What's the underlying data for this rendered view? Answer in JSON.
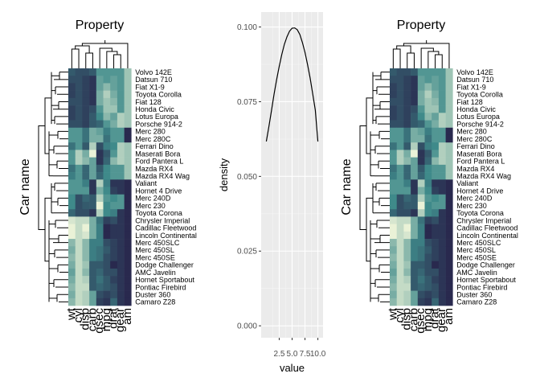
{
  "chart_data": [
    {
      "type": "heatmap",
      "title": "Property",
      "ylabel": "Car name",
      "columns": [
        "wt",
        "cyl",
        "disp",
        "carb",
        "qsec",
        "mpg",
        "drat",
        "gear",
        "am"
      ],
      "rows": [
        "Volvo 142E",
        "Datsun 710",
        "Fiat X1-9",
        "Toyota Corolla",
        "Fiat 128",
        "Honda Civic",
        "Lotus Europa",
        "Porsche 914-2",
        "Merc 280",
        "Merc 280C",
        "Ferrari Dino",
        "Maserati Bora",
        "Ford Pantera L",
        "Mazda RX4",
        "Mazda RX4 Wag",
        "Valiant",
        "Hornet 4 Drive",
        "Merc 240D",
        "Merc 230",
        "Toyota Corona",
        "Chrysler Imperial",
        "Cadillac Fleetwood",
        "Lincoln Continental",
        "Merc 450SLC",
        "Merc 450SL",
        "Merc 450SE",
        "Dodge Challenger",
        "AMC Javelin",
        "Hornet Sportabout",
        "Pontiac Firebird",
        "Duster 360",
        "Camaro Z28"
      ],
      "values": [
        [
          0.3,
          0.25,
          0.25,
          0.3,
          0.55,
          0.55,
          0.55,
          0.55,
          0.75
        ],
        [
          0.25,
          0.25,
          0.2,
          0.15,
          0.6,
          0.55,
          0.6,
          0.55,
          0.75
        ],
        [
          0.2,
          0.25,
          0.2,
          0.15,
          0.6,
          0.7,
          0.6,
          0.55,
          0.75
        ],
        [
          0.2,
          0.25,
          0.2,
          0.15,
          0.65,
          0.8,
          0.65,
          0.55,
          0.75
        ],
        [
          0.25,
          0.25,
          0.2,
          0.15,
          0.65,
          0.75,
          0.7,
          0.55,
          0.75
        ],
        [
          0.2,
          0.25,
          0.2,
          0.25,
          0.55,
          0.75,
          0.75,
          0.55,
          0.75
        ],
        [
          0.2,
          0.25,
          0.2,
          0.3,
          0.5,
          0.7,
          0.6,
          0.8,
          0.75
        ],
        [
          0.25,
          0.25,
          0.2,
          0.3,
          0.35,
          0.55,
          0.65,
          0.8,
          0.75
        ],
        [
          0.55,
          0.55,
          0.4,
          0.65,
          0.6,
          0.45,
          0.55,
          0.55,
          0.1
        ],
        [
          0.55,
          0.55,
          0.4,
          0.65,
          0.65,
          0.4,
          0.55,
          0.55,
          0.1
        ],
        [
          0.4,
          0.55,
          0.3,
          0.8,
          0.25,
          0.45,
          0.5,
          0.8,
          0.75
        ],
        [
          0.55,
          0.8,
          0.65,
          0.95,
          0.15,
          0.3,
          0.55,
          0.8,
          0.75
        ],
        [
          0.55,
          0.8,
          0.7,
          0.6,
          0.15,
          0.35,
          0.7,
          0.8,
          0.75
        ],
        [
          0.4,
          0.55,
          0.35,
          0.6,
          0.3,
          0.5,
          0.55,
          0.55,
          0.75
        ],
        [
          0.45,
          0.55,
          0.35,
          0.6,
          0.35,
          0.5,
          0.55,
          0.55,
          0.75
        ],
        [
          0.55,
          0.55,
          0.45,
          0.15,
          0.8,
          0.45,
          0.15,
          0.15,
          0.1
        ],
        [
          0.55,
          0.55,
          0.55,
          0.15,
          0.65,
          0.5,
          0.2,
          0.15,
          0.1
        ],
        [
          0.5,
          0.25,
          0.35,
          0.3,
          0.8,
          0.55,
          0.5,
          0.55,
          0.1
        ],
        [
          0.5,
          0.25,
          0.3,
          0.3,
          0.95,
          0.5,
          0.55,
          0.55,
          0.1
        ],
        [
          0.35,
          0.25,
          0.25,
          0.15,
          0.8,
          0.5,
          0.45,
          0.15,
          0.1
        ],
        [
          0.9,
          0.85,
          0.85,
          0.65,
          0.4,
          0.2,
          0.25,
          0.15,
          0.1
        ],
        [
          0.95,
          0.85,
          0.95,
          0.65,
          0.45,
          0.1,
          0.15,
          0.15,
          0.1
        ],
        [
          0.95,
          0.85,
          0.9,
          0.65,
          0.45,
          0.1,
          0.15,
          0.15,
          0.1
        ],
        [
          0.7,
          0.85,
          0.7,
          0.45,
          0.45,
          0.25,
          0.2,
          0.15,
          0.1
        ],
        [
          0.65,
          0.85,
          0.7,
          0.45,
          0.4,
          0.3,
          0.2,
          0.15,
          0.1
        ],
        [
          0.7,
          0.85,
          0.7,
          0.45,
          0.4,
          0.25,
          0.2,
          0.15,
          0.1
        ],
        [
          0.65,
          0.85,
          0.75,
          0.3,
          0.3,
          0.25,
          0.1,
          0.15,
          0.1
        ],
        [
          0.6,
          0.85,
          0.7,
          0.3,
          0.35,
          0.25,
          0.25,
          0.15,
          0.1
        ],
        [
          0.65,
          0.85,
          0.8,
          0.3,
          0.4,
          0.3,
          0.2,
          0.15,
          0.1
        ],
        [
          0.7,
          0.85,
          0.85,
          0.3,
          0.35,
          0.3,
          0.25,
          0.15,
          0.1
        ],
        [
          0.65,
          0.85,
          0.8,
          0.6,
          0.25,
          0.2,
          0.25,
          0.15,
          0.1
        ],
        [
          0.7,
          0.85,
          0.8,
          0.6,
          0.2,
          0.15,
          0.35,
          0.15,
          0.1
        ]
      ],
      "colors": {
        "low": "#24113f",
        "mid": "#3f8a8a",
        "high": "#fdfde0"
      }
    },
    {
      "type": "line",
      "xlabel": "value",
      "ylabel": "density",
      "x": [
        0.0,
        0.5,
        1.0,
        1.5,
        2.0,
        2.5,
        3.0,
        3.5,
        4.0,
        4.5,
        5.0,
        5.5,
        6.0,
        6.5,
        7.0,
        7.5,
        8.0,
        8.5,
        9.0,
        9.5,
        10.0
      ],
      "y": [
        0.0617,
        0.0667,
        0.072,
        0.0775,
        0.0824,
        0.0868,
        0.0908,
        0.0942,
        0.0967,
        0.0986,
        0.0996,
        0.0997,
        0.0991,
        0.0975,
        0.0948,
        0.0915,
        0.0874,
        0.0829,
        0.0776,
        0.0722,
        0.0617
      ],
      "xlim": [
        -1.0,
        11.0
      ],
      "ylim": [
        -0.004,
        0.105
      ],
      "xticks": [
        "2.5",
        "5.0",
        "7.5",
        "10.0"
      ],
      "xtick_values": [
        2.5,
        5.0,
        7.5,
        10.0
      ],
      "yticks": [
        "0.000",
        "0.025",
        "0.050",
        "0.075",
        "0.100"
      ],
      "ytick_values": [
        0.0,
        0.025,
        0.05,
        0.075,
        0.1
      ],
      "grid": true,
      "panel_color": "#ebebeb"
    },
    {
      "type": "heatmap",
      "title": "Property",
      "ylabel": "Car name",
      "columns": [
        "wt",
        "cyl",
        "disp",
        "carb",
        "qsec",
        "mpg",
        "drat",
        "gear",
        "am"
      ],
      "rows": [
        "Volvo 142E",
        "Datsun 710",
        "Fiat X1-9",
        "Toyota Corolla",
        "Fiat 128",
        "Honda Civic",
        "Lotus Europa",
        "Porsche 914-2",
        "Merc 280",
        "Merc 280C",
        "Ferrari Dino",
        "Maserati Bora",
        "Ford Pantera L",
        "Mazda RX4",
        "Mazda RX4 Wag",
        "Valiant",
        "Hornet 4 Drive",
        "Merc 240D",
        "Merc 230",
        "Toyota Corona",
        "Chrysler Imperial",
        "Cadillac Fleetwood",
        "Lincoln Continental",
        "Merc 450SLC",
        "Merc 450SL",
        "Merc 450SE",
        "Dodge Challenger",
        "AMC Javelin",
        "Hornet Sportabout",
        "Pontiac Firebird",
        "Duster 360",
        "Camaro Z28"
      ],
      "values": "same_as_first",
      "colors": {
        "low": "#24113f",
        "mid": "#3f8a8a",
        "high": "#fdfde0"
      }
    }
  ]
}
